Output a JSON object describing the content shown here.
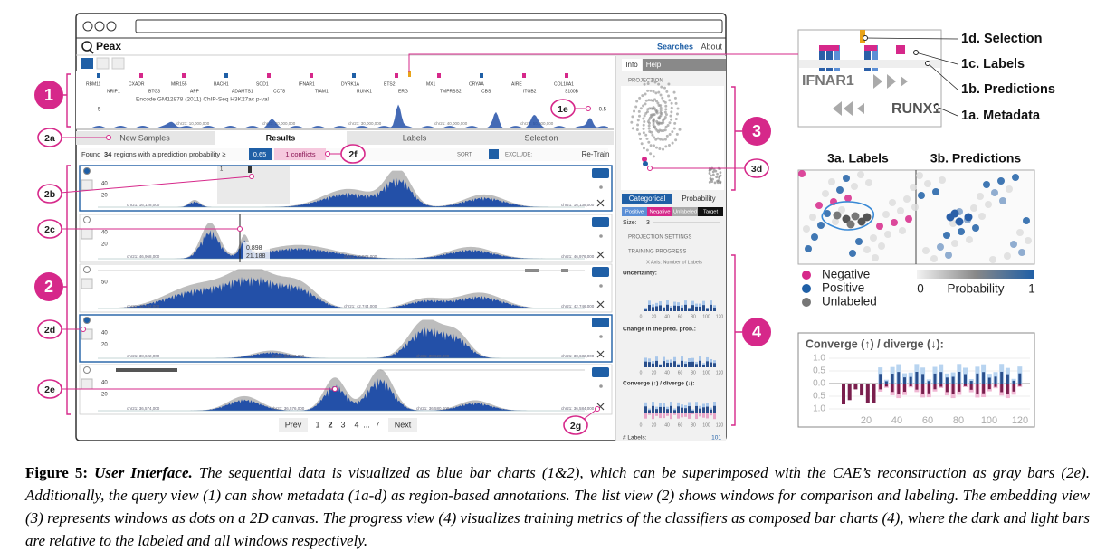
{
  "app": {
    "title": "Peax",
    "nav": [
      "Searches",
      "About"
    ],
    "query": {
      "genes_top": [
        "RBM11",
        "CXADR",
        "MIR155",
        "BACH1",
        "SOD1",
        "IFNAR1",
        "DYRK1A",
        "ETS2",
        "MX1",
        "CRYAA",
        "AIRE",
        "COL18A1"
      ],
      "genes_bottom": [
        "NRIP1",
        "BTG3",
        "APP",
        "ADAMTS1",
        "CCT8",
        "TIAM1",
        "RUNX1",
        "ERG",
        "TMPRSS2",
        "CBS",
        "ITGB2",
        "S100B"
      ],
      "track": "Encode GM12878 (2011) ChIP-Seq H3K27ac p-val",
      "ytick": "5",
      "coords": [
        "chr21: 10,000,000",
        "chr21: 20,000,000",
        "chr21: 30,000,000",
        "chr21: 40,000,000",
        "chr21: 50,000,000"
      ],
      "scale": "0.5"
    },
    "tabs": [
      "New Samples",
      "Results",
      "Labels",
      "Selection"
    ],
    "status": {
      "prefix": "Found",
      "count": "34",
      "suffix": "regions with a prediction probability ≥",
      "threshold": "0.65",
      "conflicts": "1 conflicts",
      "sort": "SORT:",
      "exclude": "EXCLUDE:",
      "retrain": "Re-Train"
    },
    "slider": "1",
    "tooltip": [
      "0.898",
      "21.188"
    ],
    "windows": [
      {
        "yticks": [
          "40",
          "20"
        ],
        "coords": [
          "chr21: 16,128,000",
          "chr21: 16,138,000"
        ]
      },
      {
        "yticks": [
          "40",
          "20"
        ],
        "coords": [
          "chr21: 46,968,000",
          "chr21: 46,972,000",
          "chr21: 46,976,000"
        ]
      },
      {
        "yticks": [
          "50"
        ],
        "coords": [
          "chr21: 42,742,000",
          "chr21: 42,744,000",
          "chr21: 42,746,000"
        ]
      },
      {
        "yticks": [
          "40",
          "20"
        ],
        "coords": [
          "chr21: 38,622,000",
          "chr21: 38,626,000",
          "chr21: 38,628,000",
          "chr21: 38,632,000"
        ]
      },
      {
        "yticks": [
          "40",
          "20"
        ],
        "coords": [
          "chr21: 36,574,000",
          "chr21: 36,576,000",
          "chr21: 36,580,000",
          "chr21: 36,584,000"
        ]
      }
    ],
    "pagination": [
      "Prev",
      "1",
      "2",
      "3",
      "4",
      "...",
      "7",
      "Next"
    ],
    "side": {
      "tabs": [
        "Info",
        "Help"
      ],
      "projection": "PROJECTION",
      "modes": [
        "Categorical",
        "Probability"
      ],
      "classes": [
        "Positive",
        "Negative",
        "Unlabeled",
        "Target"
      ],
      "size_label": "Size:",
      "size": "3",
      "settings": "PROJECTION SETTINGS",
      "progress": "TRAINING PROGRESS",
      "xaxis": "X Axis: Number of Labels",
      "metrics": [
        "Uncertainty:",
        "Change in the pred. prob.:",
        "Converge (↑) / diverge (↓):"
      ],
      "xticks": [
        "0",
        "20",
        "40",
        "60",
        "80",
        "100",
        "120"
      ],
      "labels_label": "# Labels:",
      "labels_count": "101"
    }
  },
  "callouts": {
    "main": [
      "1",
      "2",
      "3",
      "4"
    ],
    "sub": [
      "1e",
      "2a",
      "2b",
      "2c",
      "2d",
      "2e",
      "2f",
      "2g",
      "3d"
    ]
  },
  "inset_query": {
    "labels": [
      "1d. Selection",
      "1c. Labels",
      "1b. Predictions",
      "1a. Metadata"
    ],
    "genes": [
      "IFNAR1",
      "RUNX1"
    ]
  },
  "inset_embedding": {
    "titles": [
      "3a. Labels",
      "3b. Predictions"
    ],
    "legend": [
      "Negative",
      "Positive",
      "Unlabeled"
    ],
    "scale": [
      "0",
      "Probability",
      "1"
    ]
  },
  "inset_progress": {
    "title": "Converge (↑) / diverge (↓):",
    "yticks": [
      "1.0",
      "0.5",
      "0.0",
      "0.5",
      "1.0"
    ],
    "xticks": [
      "20",
      "40",
      "60",
      "80",
      "100",
      "120"
    ]
  },
  "caption": {
    "label": "Figure 5:",
    "heading": "User Interface.",
    "text": "The sequential data is visualized as blue bar charts (1&2), which can be superimposed with the CAE’s reconstruction as gray bars (2e). Additionally, the query view (1) can show metadata (1a-d) as region-based annotations. The list view (2) shows windows for comparison and labeling. The embedding view (3) represents windows as dots on a 2D canvas. The progress view (4) visualizes training metrics of the classifiers as composed bar charts (4), where the dark and light bars are relative to the labeled and all windows respectively."
  }
}
